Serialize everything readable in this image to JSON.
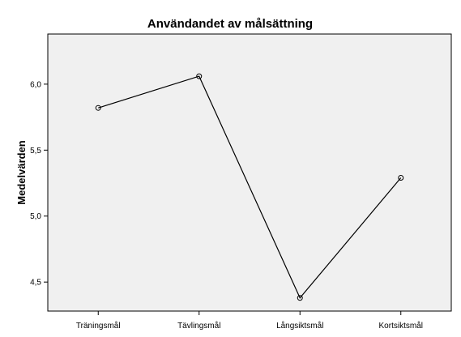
{
  "chart_data": {
    "type": "line",
    "title": "Användandet av målsättning",
    "xlabel": "",
    "ylabel": "Medelvärden",
    "categories": [
      "Träningsmål",
      "Tävlingsmål",
      "Långsiktsmål",
      "Kortsiktsmål"
    ],
    "values": [
      5.82,
      6.06,
      4.38,
      5.29
    ],
    "ylim": [
      4.28,
      6.38
    ],
    "yticks": [
      4.5,
      5.0,
      5.5,
      6.0
    ],
    "ytick_labels": [
      "4,5",
      "5,0",
      "5,5",
      "6,0"
    ],
    "grid": false,
    "legend": "none",
    "colors": {
      "plot_background": "#f0f0f0",
      "line": "#000000",
      "marker": "#000000"
    }
  }
}
